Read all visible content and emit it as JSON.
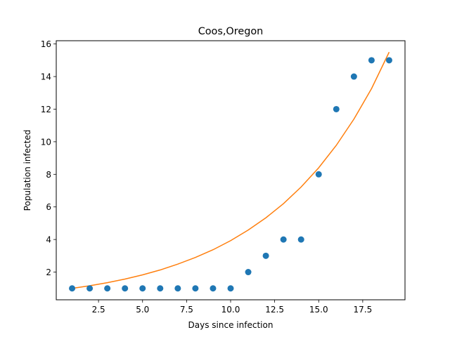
{
  "chart_data": {
    "type": "scatter",
    "title": "Coos,Oregon",
    "xlabel": "Days since infection",
    "ylabel": "Population infected",
    "xlim": [
      0.1,
      19.9
    ],
    "ylim": [
      0.3,
      16.2
    ],
    "xticks": [
      2.5,
      5.0,
      7.5,
      10.0,
      12.5,
      15.0,
      17.5
    ],
    "xtick_labels": [
      "2.5",
      "5.0",
      "7.5",
      "10.0",
      "12.5",
      "15.0",
      "17.5"
    ],
    "yticks": [
      2,
      4,
      6,
      8,
      10,
      12,
      14,
      16
    ],
    "ytick_labels": [
      "2",
      "4",
      "6",
      "8",
      "10",
      "12",
      "14",
      "16"
    ],
    "grid": false,
    "series": [
      {
        "kind": "scatter",
        "color": "#1f77b4",
        "x": [
          1,
          2,
          3,
          4,
          5,
          6,
          7,
          8,
          9,
          10,
          11,
          12,
          13,
          14,
          15,
          16,
          17,
          18,
          19
        ],
        "y": [
          1,
          1,
          1,
          1,
          1,
          1,
          1,
          1,
          1,
          1,
          2,
          3,
          4,
          4,
          8,
          12,
          14,
          15,
          15
        ]
      },
      {
        "kind": "line",
        "color": "#ff7f0e",
        "x": [
          1,
          2,
          3,
          4,
          5,
          6,
          7,
          8,
          9,
          10,
          11,
          12,
          13,
          14,
          15,
          16,
          17,
          18,
          19
        ],
        "y": [
          1.0,
          1.16,
          1.35,
          1.57,
          1.83,
          2.13,
          2.49,
          2.9,
          3.37,
          3.93,
          4.58,
          5.33,
          6.2,
          7.22,
          8.4,
          9.78,
          11.39,
          13.26,
          15.5
        ]
      }
    ]
  }
}
